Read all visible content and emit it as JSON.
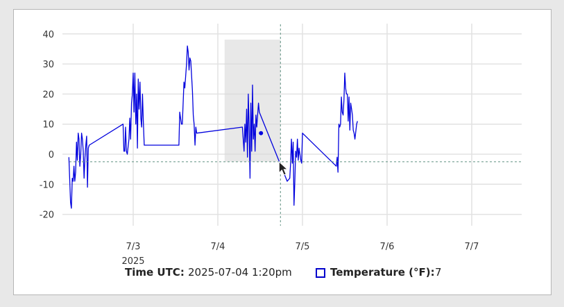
{
  "chart_data": {
    "type": "line",
    "xlabel": "",
    "ylabel": "",
    "ylim": [
      -25,
      42
    ],
    "y_ticks": [
      40,
      30,
      20,
      10,
      0,
      -10,
      -20
    ],
    "x_ticks": [
      {
        "label": "7/3",
        "sublabel": "2025",
        "day": 3
      },
      {
        "label": "7/4",
        "sublabel": "",
        "day": 4
      },
      {
        "label": "7/5",
        "sublabel": "",
        "day": 5
      },
      {
        "label": "7/6",
        "sublabel": "",
        "day": 6
      },
      {
        "label": "7/7",
        "sublabel": "",
        "day": 7
      }
    ],
    "xlim_days": [
      2.2,
      7.6
    ],
    "grid": true,
    "series": [
      {
        "name": "Temperature (°F)",
        "color": "#0000dd",
        "points": [
          [
            2.24,
            -1
          ],
          [
            2.26,
            -16
          ],
          [
            2.27,
            -18
          ],
          [
            2.28,
            -8
          ],
          [
            2.29,
            -9
          ],
          [
            2.3,
            -4
          ],
          [
            2.31,
            -9
          ],
          [
            2.32,
            -6
          ],
          [
            2.33,
            4
          ],
          [
            2.34,
            -2
          ],
          [
            2.35,
            7
          ],
          [
            2.36,
            5
          ],
          [
            2.37,
            -4
          ],
          [
            2.38,
            0
          ],
          [
            2.39,
            7
          ],
          [
            2.4,
            5
          ],
          [
            2.41,
            1
          ],
          [
            2.42,
            -8
          ],
          [
            2.43,
            -1
          ],
          [
            2.44,
            3
          ],
          [
            2.45,
            6
          ],
          [
            2.46,
            -11
          ],
          [
            2.47,
            2
          ],
          [
            2.48,
            3
          ],
          [
            2.88,
            10
          ],
          [
            2.89,
            1
          ],
          [
            2.9,
            1
          ],
          [
            2.91,
            9
          ],
          [
            2.92,
            1
          ],
          [
            2.93,
            0
          ],
          [
            2.95,
            5
          ],
          [
            2.96,
            12
          ],
          [
            2.97,
            5
          ],
          [
            2.98,
            17
          ],
          [
            2.99,
            20
          ],
          [
            3.0,
            27
          ],
          [
            3.01,
            14
          ],
          [
            3.02,
            27
          ],
          [
            3.03,
            10
          ],
          [
            3.04,
            20
          ],
          [
            3.05,
            2
          ],
          [
            3.06,
            25
          ],
          [
            3.07,
            15
          ],
          [
            3.08,
            24
          ],
          [
            3.09,
            12
          ],
          [
            3.1,
            9
          ],
          [
            3.11,
            20
          ],
          [
            3.12,
            11
          ],
          [
            3.13,
            3
          ],
          [
            3.54,
            3
          ],
          [
            3.55,
            14
          ],
          [
            3.57,
            10
          ],
          [
            3.58,
            10
          ],
          [
            3.6,
            24
          ],
          [
            3.61,
            22
          ],
          [
            3.63,
            30
          ],
          [
            3.64,
            36
          ],
          [
            3.65,
            34
          ],
          [
            3.66,
            28
          ],
          [
            3.67,
            32
          ],
          [
            3.68,
            31
          ],
          [
            3.69,
            26
          ],
          [
            3.7,
            21
          ],
          [
            3.71,
            13
          ],
          [
            3.72,
            10
          ],
          [
            3.73,
            3
          ],
          [
            3.74,
            9
          ],
          [
            3.75,
            7
          ],
          [
            4.29,
            9
          ],
          [
            4.3,
            5
          ],
          [
            4.31,
            1
          ],
          [
            4.32,
            10
          ],
          [
            4.33,
            4
          ],
          [
            4.34,
            15
          ],
          [
            4.35,
            -1
          ],
          [
            4.36,
            20
          ],
          [
            4.37,
            9
          ],
          [
            4.38,
            -8
          ],
          [
            4.39,
            17
          ],
          [
            4.4,
            1
          ],
          [
            4.41,
            23
          ],
          [
            4.42,
            5
          ],
          [
            4.43,
            10
          ],
          [
            4.44,
            1
          ],
          [
            4.45,
            13
          ],
          [
            4.46,
            9
          ],
          [
            4.48,
            17
          ],
          [
            4.49,
            14
          ],
          [
            4.82,
            -9
          ],
          [
            4.85,
            -8
          ],
          [
            4.86,
            -3
          ],
          [
            4.87,
            5
          ],
          [
            4.88,
            -3
          ],
          [
            4.89,
            4
          ],
          [
            4.9,
            -17
          ],
          [
            4.91,
            -9
          ],
          [
            4.92,
            1
          ],
          [
            4.93,
            -1
          ],
          [
            4.94,
            5
          ],
          [
            4.95,
            -2
          ],
          [
            4.96,
            2
          ],
          [
            4.97,
            0
          ],
          [
            4.98,
            -2
          ],
          [
            4.99,
            -3
          ],
          [
            5.0,
            7
          ],
          [
            5.4,
            -4
          ],
          [
            5.41,
            -1
          ],
          [
            5.42,
            -6
          ],
          [
            5.43,
            10
          ],
          [
            5.44,
            9
          ],
          [
            5.45,
            10
          ],
          [
            5.46,
            19
          ],
          [
            5.47,
            14
          ],
          [
            5.48,
            13
          ],
          [
            5.49,
            18
          ],
          [
            5.5,
            27
          ],
          [
            5.51,
            22
          ],
          [
            5.52,
            20
          ],
          [
            5.53,
            20
          ],
          [
            5.54,
            11
          ],
          [
            5.55,
            19
          ],
          [
            5.56,
            8
          ],
          [
            5.57,
            17
          ],
          [
            5.58,
            15
          ],
          [
            5.59,
            13
          ],
          [
            5.6,
            8
          ],
          [
            5.61,
            7
          ],
          [
            5.62,
            5
          ],
          [
            5.64,
            10
          ],
          [
            5.65,
            11
          ]
        ]
      }
    ],
    "highlight_band": {
      "from_day": 4.08,
      "to_day": 4.74
    },
    "crosshair": {
      "day": 4.74,
      "value": 7
    }
  },
  "legend": {
    "time_label": "Time UTC:",
    "time_value": "2025-07-04 1:20pm",
    "series_label": "Temperature (°F):",
    "series_value": "7"
  }
}
